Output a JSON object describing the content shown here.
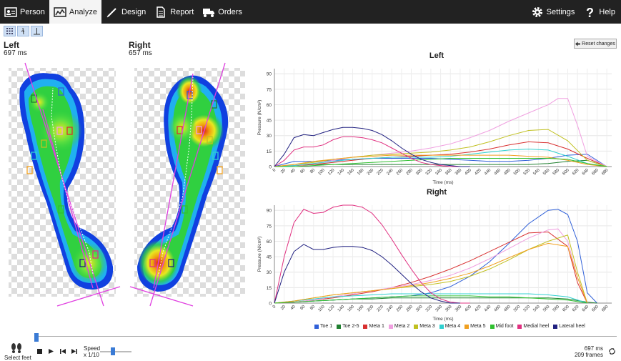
{
  "nav": {
    "person": "Person",
    "analyze": "Analyze",
    "design": "Design",
    "report": "Report",
    "orders": "Orders",
    "settings": "Settings",
    "help": "Help"
  },
  "feet": {
    "left": {
      "label": "Left",
      "ms": "697 ms"
    },
    "right": {
      "label": "Right",
      "ms": "657 ms"
    }
  },
  "reset_label": "Reset changes",
  "bottom": {
    "select_feet": "Select feet",
    "speed_label": "Speed",
    "speed_value": "x 1/10",
    "time": "697 ms",
    "frames": "209 frames"
  },
  "colors": {
    "toe1": "#3060d8",
    "toe25": "#208030",
    "meta1": "#d83030",
    "meta2": "#f0a0e0",
    "meta3": "#c0c020",
    "meta4": "#30d0d0",
    "meta5": "#f0a020",
    "midfoot": "#30c030",
    "medialheel": "#e03080",
    "lateralheel": "#202080"
  },
  "chart_data": [
    {
      "type": "line",
      "title": "Left",
      "xlabel": "Time (ms)",
      "ylabel": "Pressure (N/cm²)",
      "xlim": [
        0,
        690
      ],
      "ylim": [
        0,
        95
      ],
      "xticks": [
        0,
        20,
        40,
        60,
        80,
        100,
        120,
        140,
        160,
        180,
        200,
        220,
        240,
        260,
        280,
        300,
        320,
        340,
        360,
        380,
        400,
        420,
        440,
        460,
        480,
        500,
        520,
        540,
        560,
        580,
        600,
        620,
        640,
        660,
        680
      ],
      "yticks": [
        0,
        15,
        30,
        45,
        60,
        75,
        90
      ],
      "series": [
        {
          "name": "Toe 1",
          "color": "#3060d8",
          "x": [
            0,
            40,
            80,
            120,
            160,
            200,
            240,
            280,
            320,
            360,
            400,
            440,
            480,
            520,
            560,
            600,
            640,
            680
          ],
          "y": [
            0,
            5,
            5,
            6,
            7,
            8,
            8,
            8,
            8,
            7,
            6,
            5,
            5,
            6,
            8,
            11,
            12,
            0
          ]
        },
        {
          "name": "Toe 2-5",
          "color": "#208030",
          "x": [
            0,
            40,
            80,
            120,
            160,
            200,
            240,
            280,
            320,
            360,
            400,
            440,
            480,
            520,
            560,
            600,
            640,
            680
          ],
          "y": [
            0,
            1,
            2,
            2,
            2,
            2,
            2,
            2,
            2,
            2,
            2,
            2,
            2,
            2,
            3,
            5,
            6,
            0
          ]
        },
        {
          "name": "Meta 1",
          "color": "#d83030",
          "x": [
            0,
            40,
            80,
            120,
            160,
            200,
            240,
            280,
            320,
            360,
            400,
            440,
            480,
            520,
            560,
            600,
            640,
            680
          ],
          "y": [
            0,
            1,
            2,
            4,
            6,
            8,
            9,
            10,
            11,
            12,
            14,
            17,
            21,
            24,
            23,
            17,
            8,
            0
          ]
        },
        {
          "name": "Meta 2",
          "color": "#f0a0e0",
          "x": [
            0,
            40,
            80,
            120,
            160,
            200,
            240,
            280,
            320,
            360,
            400,
            440,
            480,
            520,
            560,
            580,
            600,
            620,
            640,
            680
          ],
          "y": [
            0,
            1,
            3,
            6,
            9,
            11,
            13,
            15,
            18,
            22,
            28,
            35,
            44,
            52,
            60,
            66,
            66,
            40,
            10,
            0
          ]
        },
        {
          "name": "Meta 3",
          "color": "#c0c020",
          "x": [
            0,
            40,
            80,
            120,
            160,
            200,
            240,
            280,
            320,
            360,
            400,
            440,
            480,
            520,
            560,
            600,
            640,
            680
          ],
          "y": [
            0,
            2,
            4,
            7,
            9,
            11,
            12,
            13,
            14,
            16,
            19,
            24,
            30,
            35,
            36,
            25,
            6,
            0
          ]
        },
        {
          "name": "Meta 4",
          "color": "#30d0d0",
          "x": [
            0,
            40,
            80,
            120,
            160,
            200,
            240,
            280,
            320,
            360,
            400,
            440,
            480,
            520,
            560,
            600,
            640,
            680
          ],
          "y": [
            0,
            1,
            3,
            5,
            7,
            8,
            9,
            9,
            9,
            10,
            12,
            14,
            16,
            17,
            16,
            10,
            3,
            0
          ]
        },
        {
          "name": "Meta 5",
          "color": "#f0a020",
          "x": [
            0,
            40,
            80,
            120,
            160,
            200,
            240,
            280,
            320,
            360,
            400,
            440,
            480,
            520,
            560,
            600,
            640,
            680
          ],
          "y": [
            0,
            2,
            5,
            7,
            9,
            10,
            11,
            11,
            11,
            11,
            11,
            11,
            11,
            10,
            9,
            6,
            2,
            0
          ]
        },
        {
          "name": "Mid foot",
          "color": "#30c030",
          "x": [
            0,
            40,
            80,
            120,
            160,
            200,
            240,
            280,
            320,
            360,
            400,
            440,
            480,
            520,
            560,
            600,
            640,
            680
          ],
          "y": [
            0,
            0,
            1,
            2,
            3,
            4,
            5,
            6,
            7,
            8,
            8,
            8,
            8,
            8,
            8,
            7,
            3,
            0
          ]
        },
        {
          "name": "Medial heel",
          "color": "#e03080",
          "x": [
            0,
            20,
            40,
            60,
            80,
            100,
            120,
            140,
            160,
            180,
            200,
            220,
            240,
            260,
            280,
            300,
            320,
            340,
            360,
            380
          ],
          "y": [
            0,
            6,
            16,
            19,
            19,
            21,
            26,
            29,
            29,
            28,
            26,
            23,
            18,
            13,
            8,
            4,
            2,
            1,
            0,
            0
          ]
        },
        {
          "name": "Lateral heel",
          "color": "#202080",
          "x": [
            0,
            20,
            40,
            60,
            80,
            100,
            120,
            140,
            160,
            180,
            200,
            220,
            240,
            260,
            280,
            300,
            320,
            340,
            360,
            380,
            400
          ],
          "y": [
            0,
            12,
            28,
            31,
            30,
            33,
            36,
            38,
            38,
            37,
            35,
            31,
            25,
            18,
            12,
            7,
            4,
            2,
            1,
            0,
            0
          ]
        }
      ]
    },
    {
      "type": "line",
      "title": "Right",
      "xlabel": "Time (ms)",
      "ylabel": "Pressure (N/cm²)",
      "xlim": [
        0,
        690
      ],
      "ylim": [
        0,
        95
      ],
      "xticks": [
        0,
        20,
        40,
        60,
        80,
        100,
        120,
        140,
        160,
        180,
        200,
        220,
        240,
        260,
        280,
        300,
        320,
        340,
        360,
        380,
        400,
        420,
        440,
        460,
        480,
        500,
        520,
        540,
        560,
        580,
        600,
        620,
        640,
        660,
        680
      ],
      "yticks": [
        0,
        15,
        30,
        45,
        60,
        75,
        90
      ],
      "series": [
        {
          "name": "Toe 1",
          "color": "#3060d8",
          "x": [
            0,
            40,
            80,
            120,
            160,
            200,
            240,
            280,
            320,
            360,
            400,
            440,
            480,
            520,
            560,
            580,
            600,
            620,
            640,
            660
          ],
          "y": [
            0,
            1,
            2,
            3,
            4,
            5,
            6,
            7,
            10,
            16,
            26,
            40,
            58,
            77,
            90,
            91,
            86,
            60,
            10,
            0
          ]
        },
        {
          "name": "Toe 2-5",
          "color": "#208030",
          "x": [
            0,
            40,
            80,
            120,
            160,
            200,
            240,
            280,
            320,
            360,
            400,
            440,
            480,
            520,
            560,
            600,
            640,
            660
          ],
          "y": [
            0,
            1,
            2,
            3,
            4,
            4,
            5,
            5,
            5,
            5,
            5,
            5,
            5,
            5,
            5,
            4,
            1,
            0
          ]
        },
        {
          "name": "Meta 1",
          "color": "#d83030",
          "x": [
            0,
            40,
            80,
            120,
            160,
            200,
            240,
            280,
            320,
            360,
            400,
            440,
            480,
            520,
            560,
            600,
            620,
            640
          ],
          "y": [
            0,
            1,
            3,
            5,
            8,
            11,
            15,
            20,
            26,
            33,
            41,
            50,
            59,
            68,
            69,
            55,
            20,
            0
          ]
        },
        {
          "name": "Meta 2",
          "color": "#f0a0e0",
          "x": [
            0,
            40,
            80,
            120,
            160,
            200,
            240,
            280,
            320,
            360,
            400,
            440,
            480,
            520,
            560,
            580,
            600,
            620,
            640
          ],
          "y": [
            0,
            1,
            3,
            6,
            9,
            12,
            15,
            18,
            22,
            27,
            34,
            43,
            53,
            63,
            71,
            72,
            60,
            25,
            0
          ]
        },
        {
          "name": "Meta 3",
          "color": "#c0c020",
          "x": [
            0,
            40,
            80,
            120,
            160,
            200,
            240,
            280,
            320,
            360,
            400,
            440,
            480,
            520,
            560,
            600,
            620,
            640
          ],
          "y": [
            0,
            2,
            5,
            8,
            10,
            12,
            14,
            16,
            18,
            21,
            26,
            33,
            42,
            52,
            60,
            66,
            30,
            0
          ]
        },
        {
          "name": "Meta 4",
          "color": "#30d0d0",
          "x": [
            0,
            40,
            80,
            120,
            160,
            200,
            240,
            280,
            320,
            360,
            400,
            440,
            480,
            520,
            560,
            600,
            640
          ],
          "y": [
            0,
            2,
            4,
            6,
            7,
            8,
            9,
            9,
            9,
            9,
            9,
            9,
            9,
            9,
            8,
            6,
            0
          ]
        },
        {
          "name": "Meta 5",
          "color": "#f0a020",
          "x": [
            0,
            40,
            80,
            120,
            160,
            200,
            240,
            280,
            320,
            360,
            400,
            440,
            480,
            520,
            560,
            600,
            620,
            640
          ],
          "y": [
            0,
            2,
            5,
            8,
            10,
            12,
            14,
            17,
            20,
            24,
            29,
            36,
            44,
            52,
            58,
            55,
            25,
            0
          ]
        },
        {
          "name": "Mid foot",
          "color": "#30c030",
          "x": [
            0,
            40,
            80,
            120,
            160,
            200,
            240,
            280,
            320,
            360,
            400,
            440,
            480,
            520,
            560,
            600,
            640
          ],
          "y": [
            0,
            1,
            2,
            3,
            4,
            5,
            6,
            7,
            7,
            7,
            7,
            6,
            6,
            5,
            4,
            3,
            0
          ]
        },
        {
          "name": "Medial heel",
          "color": "#e03080",
          "x": [
            0,
            20,
            40,
            60,
            80,
            100,
            120,
            140,
            160,
            180,
            200,
            220,
            240,
            260,
            280,
            300,
            320,
            340,
            360,
            380,
            400
          ],
          "y": [
            0,
            45,
            78,
            91,
            87,
            88,
            93,
            95,
            95,
            93,
            87,
            76,
            62,
            47,
            33,
            20,
            10,
            4,
            1,
            0,
            0
          ]
        },
        {
          "name": "Lateral heel",
          "color": "#202080",
          "x": [
            0,
            20,
            40,
            60,
            80,
            100,
            120,
            140,
            160,
            180,
            200,
            220,
            240,
            260,
            280,
            300,
            320,
            340,
            360,
            380
          ],
          "y": [
            0,
            30,
            50,
            57,
            52,
            52,
            54,
            55,
            55,
            54,
            51,
            45,
            37,
            28,
            19,
            11,
            5,
            2,
            0,
            0
          ]
        }
      ]
    }
  ]
}
